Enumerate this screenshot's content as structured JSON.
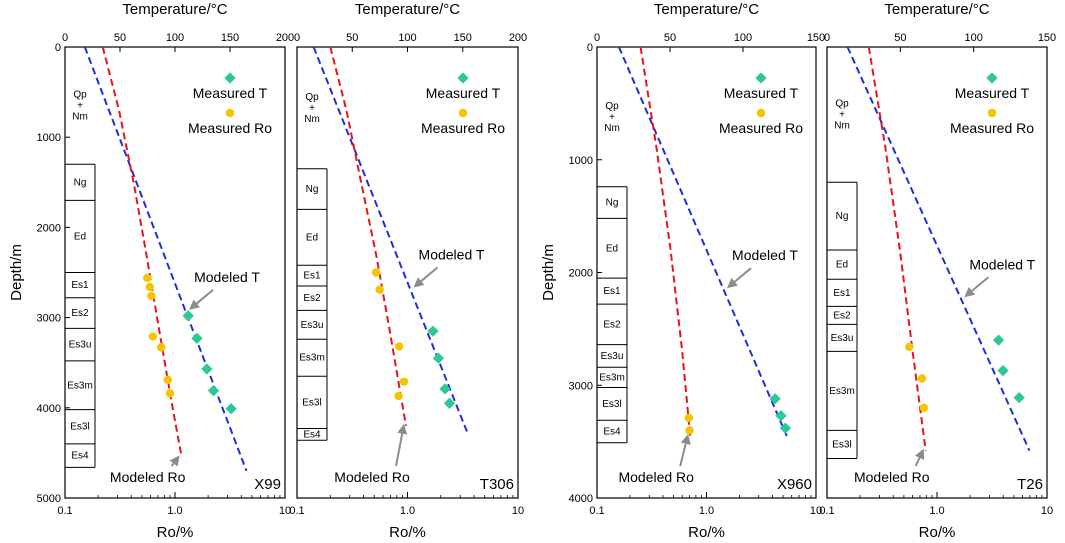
{
  "chart_data": [
    {
      "type": "scatter",
      "well_label": "X99",
      "title": "Temperature/°C",
      "xlabel": "Ro/%",
      "ylabel": "Depth/m",
      "temp_range": [
        0,
        200
      ],
      "temp_ticks": [
        "0",
        "50",
        "100",
        "150",
        "200"
      ],
      "ro_range_log10": [
        -1,
        1
      ],
      "ro_ticks": [
        "0.1",
        "1.0",
        "10"
      ],
      "depth_range": [
        0,
        5000
      ],
      "depth_ticks": [
        "0",
        "1000",
        "2000",
        "3000",
        "4000",
        "5000"
      ],
      "strata": [
        {
          "name": "Qp\n+\nNm",
          "top": 0,
          "bottom": 1300
        },
        {
          "name": "Ng",
          "top": 1300,
          "bottom": 1700
        },
        {
          "name": "Ed",
          "top": 1700,
          "bottom": 2500
        },
        {
          "name": "Es1",
          "top": 2500,
          "bottom": 2780
        },
        {
          "name": "Es2",
          "top": 2780,
          "bottom": 3120
        },
        {
          "name": "Es3u",
          "top": 3120,
          "bottom": 3480
        },
        {
          "name": "Es3m",
          "top": 3480,
          "bottom": 4020
        },
        {
          "name": "Es3l",
          "top": 4020,
          "bottom": 4400
        },
        {
          "name": "Es4",
          "top": 4400,
          "bottom": 4660
        }
      ],
      "measured_t": [
        [
          112,
          2980
        ],
        [
          120,
          3230
        ],
        [
          129,
          3570
        ],
        [
          135,
          3810
        ],
        [
          151,
          4010
        ]
      ],
      "measured_ro": [
        [
          0.56,
          2560
        ],
        [
          0.59,
          2660
        ],
        [
          0.61,
          2760
        ],
        [
          0.63,
          3210
        ],
        [
          0.75,
          3330
        ],
        [
          0.86,
          3690
        ],
        [
          0.9,
          3840
        ]
      ],
      "modeled_t": [
        [
          18,
          0
        ],
        [
          165,
          4700
        ]
      ],
      "modeled_ro": [
        [
          0.22,
          0
        ],
        [
          0.31,
          700
        ],
        [
          0.42,
          1500
        ],
        [
          0.55,
          2300
        ],
        [
          0.71,
          3100
        ],
        [
          0.92,
          3900
        ],
        [
          1.15,
          4550
        ]
      ],
      "legend": {
        "measured_t": "Measured T",
        "measured_ro": "Measured Ro"
      },
      "annotations": {
        "modeled_t": "Modeled T",
        "modeled_ro": "Modeled Ro"
      }
    },
    {
      "type": "scatter",
      "well_label": "T306",
      "title": "Temperature/°C",
      "xlabel": "Ro/%",
      "ylabel": "",
      "temp_range": [
        0,
        200
      ],
      "temp_ticks": [
        "0",
        "50",
        "100",
        "150",
        "200"
      ],
      "ro_range_log10": [
        -1,
        1
      ],
      "ro_ticks": [
        "0.1",
        "1.0",
        "10"
      ],
      "depth_range": [
        0,
        5000
      ],
      "depth_ticks": [],
      "strata": [
        {
          "name": "Qp\n+\nNm",
          "top": 0,
          "bottom": 1350
        },
        {
          "name": "Ng",
          "top": 1350,
          "bottom": 1800
        },
        {
          "name": "Ed",
          "top": 1800,
          "bottom": 2420
        },
        {
          "name": "Es1",
          "top": 2420,
          "bottom": 2650
        },
        {
          "name": "Es2",
          "top": 2650,
          "bottom": 2920
        },
        {
          "name": "Es3u",
          "top": 2920,
          "bottom": 3240
        },
        {
          "name": "Es3m",
          "top": 3240,
          "bottom": 3650
        },
        {
          "name": "Es3l",
          "top": 3650,
          "bottom": 4230
        },
        {
          "name": "Es4",
          "top": 4230,
          "bottom": 4360
        }
      ],
      "measured_t": [
        [
          123,
          3150
        ],
        [
          128,
          3450
        ],
        [
          134,
          3790
        ],
        [
          138,
          3950
        ]
      ],
      "measured_ro": [
        [
          0.52,
          2500
        ],
        [
          0.56,
          2690
        ],
        [
          0.84,
          3320
        ],
        [
          0.93,
          3710
        ],
        [
          0.83,
          3870
        ]
      ],
      "modeled_t": [
        [
          15,
          0
        ],
        [
          155,
          4300
        ]
      ],
      "modeled_ro": [
        [
          0.2,
          0
        ],
        [
          0.28,
          700
        ],
        [
          0.38,
          1500
        ],
        [
          0.52,
          2300
        ],
        [
          0.68,
          3100
        ],
        [
          0.97,
          4200
        ]
      ],
      "legend": {
        "measured_t": "Measured T",
        "measured_ro": "Measured Ro"
      },
      "annotations": {
        "modeled_t": "Modeled T",
        "modeled_ro": "Modeled Ro"
      }
    },
    {
      "type": "scatter",
      "well_label": "X960",
      "title": "Temperature/°C",
      "xlabel": "Ro/%",
      "ylabel": "Depth/m",
      "temp_range": [
        0,
        150
      ],
      "temp_ticks": [
        "0",
        "50",
        "100",
        "150"
      ],
      "ro_range_log10": [
        -1,
        1
      ],
      "ro_ticks": [
        "0.1",
        "1.0",
        "10"
      ],
      "depth_range": [
        0,
        4000
      ],
      "depth_ticks": [
        "0",
        "1000",
        "2000",
        "3000",
        "4000"
      ],
      "strata": [
        {
          "name": "Qp\n+\nNm",
          "top": 0,
          "bottom": 1240
        },
        {
          "name": "Ng",
          "top": 1240,
          "bottom": 1520
        },
        {
          "name": "Ed",
          "top": 1520,
          "bottom": 2050
        },
        {
          "name": "Es1",
          "top": 2050,
          "bottom": 2280
        },
        {
          "name": "Es2",
          "top": 2280,
          "bottom": 2640
        },
        {
          "name": "Es3u",
          "top": 2640,
          "bottom": 2840
        },
        {
          "name": "Es3m",
          "top": 2840,
          "bottom": 3020
        },
        {
          "name": "Es3l",
          "top": 3020,
          "bottom": 3310
        },
        {
          "name": "Es4",
          "top": 3310,
          "bottom": 3510
        }
      ],
      "measured_t": [
        [
          122,
          3120
        ],
        [
          126,
          3270
        ],
        [
          129,
          3380
        ]
      ],
      "measured_ro": [
        [
          0.69,
          3290
        ],
        [
          0.7,
          3400
        ]
      ],
      "modeled_t": [
        [
          15,
          0
        ],
        [
          130,
          3450
        ]
      ],
      "modeled_ro": [
        [
          0.25,
          0
        ],
        [
          0.35,
          900
        ],
        [
          0.47,
          1800
        ],
        [
          0.6,
          2700
        ],
        [
          0.71,
          3450
        ]
      ],
      "legend": {
        "measured_t": "Measured T",
        "measured_ro": "Measured Ro"
      },
      "annotations": {
        "modeled_t": "Modeled T",
        "modeled_ro": "Modeled Ro"
      }
    },
    {
      "type": "scatter",
      "well_label": "T26",
      "title": "Temperature/°C",
      "xlabel": "Ro/%",
      "ylabel": "",
      "temp_range": [
        0,
        150
      ],
      "temp_ticks": [
        "0",
        "50",
        "100",
        "150"
      ],
      "ro_range_log10": [
        -1,
        1
      ],
      "ro_ticks": [
        "0.1",
        "1.0",
        "10"
      ],
      "depth_range": [
        0,
        4000
      ],
      "depth_ticks": [],
      "strata": [
        {
          "name": "Qp\n+\nNm",
          "top": 0,
          "bottom": 1200
        },
        {
          "name": "Ng",
          "top": 1200,
          "bottom": 1800
        },
        {
          "name": "Ed",
          "top": 1800,
          "bottom": 2060
        },
        {
          "name": "Es1",
          "top": 2060,
          "bottom": 2300
        },
        {
          "name": "Es2",
          "top": 2300,
          "bottom": 2460
        },
        {
          "name": "Es3u",
          "top": 2460,
          "bottom": 2700
        },
        {
          "name": "Es3m",
          "top": 2700,
          "bottom": 3400
        },
        {
          "name": "Es3l",
          "top": 3400,
          "bottom": 3650
        }
      ],
      "measured_t": [
        [
          117,
          2600
        ],
        [
          120,
          2870
        ],
        [
          131,
          3110
        ]
      ],
      "measured_ro": [
        [
          0.56,
          2660
        ],
        [
          0.73,
          2940
        ],
        [
          0.76,
          3200
        ]
      ],
      "modeled_t": [
        [
          14,
          0
        ],
        [
          138,
          3580
        ]
      ],
      "modeled_ro": [
        [
          0.24,
          0
        ],
        [
          0.34,
          900
        ],
        [
          0.46,
          1800
        ],
        [
          0.6,
          2700
        ],
        [
          0.79,
          3580
        ]
      ],
      "legend": {
        "measured_t": "Measured T",
        "measured_ro": "Measured Ro"
      },
      "annotations": {
        "modeled_t": "Modeled T",
        "modeled_ro": "Modeled Ro"
      }
    }
  ],
  "colors": {
    "measured_t": "#2dc89a",
    "measured_ro": "#f5c400",
    "modeled_t": "#1f2fd8",
    "modeled_ro": "#e8141c",
    "arrow": "#8c8c8c"
  }
}
